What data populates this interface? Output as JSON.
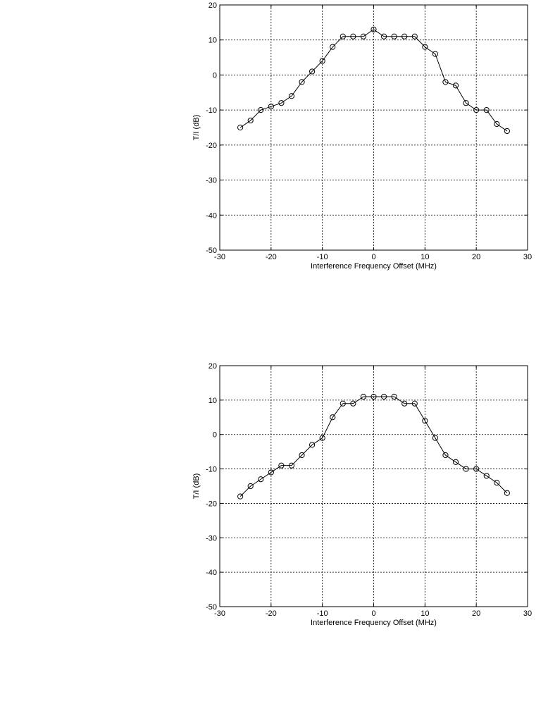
{
  "chart_data": [
    {
      "type": "line",
      "title": "",
      "xlabel": "Interference Frequency Offset (MHz)",
      "ylabel": "T/I (dB)",
      "xlim": [
        -30,
        30
      ],
      "ylim": [
        -50,
        20
      ],
      "xticks": [
        -30,
        -20,
        -10,
        0,
        10,
        20,
        30
      ],
      "yticks": [
        -50,
        -40,
        -30,
        -20,
        -10,
        0,
        10,
        20
      ],
      "grid": true,
      "marker": "circle",
      "line_color": "#000000",
      "series": [
        {
          "x": [
            -26,
            -24,
            -22,
            -20,
            -18,
            -16,
            -14,
            -12,
            -10,
            -8,
            -6,
            -4,
            -2,
            0,
            2,
            4,
            6,
            8,
            10,
            12,
            14,
            16,
            18,
            20,
            22,
            24,
            26
          ],
          "y": [
            -15,
            -13,
            -10,
            -9,
            -8,
            -6,
            -2,
            1,
            4,
            8,
            11,
            11,
            11,
            13,
            11,
            11,
            11,
            11,
            8,
            6,
            -2,
            -3,
            -8,
            -10,
            -10,
            -14,
            -16
          ]
        }
      ]
    },
    {
      "type": "line",
      "title": "",
      "xlabel": "Interference Frequency Offset (MHz)",
      "ylabel": "T/I (dB)",
      "xlim": [
        -30,
        30
      ],
      "ylim": [
        -50,
        20
      ],
      "xticks": [
        -30,
        -20,
        -10,
        0,
        10,
        20,
        30
      ],
      "yticks": [
        -50,
        -40,
        -30,
        -20,
        -10,
        0,
        10,
        20
      ],
      "grid": true,
      "marker": "circle",
      "line_color": "#000000",
      "series": [
        {
          "x": [
            -26,
            -24,
            -22,
            -20,
            -18,
            -16,
            -14,
            -12,
            -10,
            -8,
            -6,
            -4,
            -2,
            0,
            2,
            4,
            6,
            8,
            10,
            12,
            14,
            16,
            18,
            20,
            22,
            24,
            26
          ],
          "y": [
            -18,
            -15,
            -13,
            -11,
            -9,
            -9,
            -6,
            -3,
            -1,
            5,
            9,
            9,
            11,
            11,
            11,
            11,
            9,
            9,
            4,
            -1,
            -6,
            -8,
            -10,
            -10,
            -12,
            -14,
            -17
          ]
        }
      ]
    }
  ]
}
